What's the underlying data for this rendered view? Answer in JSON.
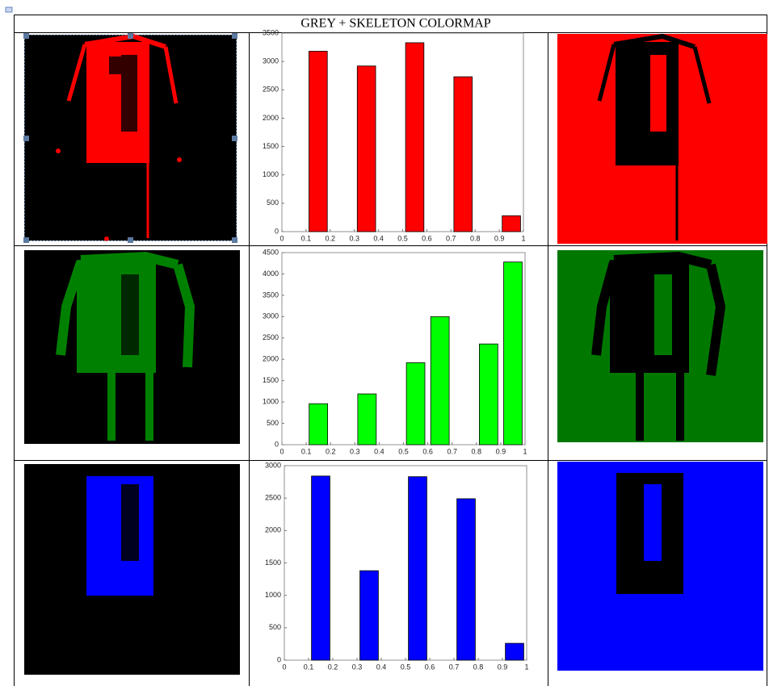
{
  "title": "GREY + SKELETON COLORMAP",
  "chart_data": [
    {
      "type": "histogram",
      "color": "#ff0000",
      "bins": [
        0,
        0.1,
        0.2,
        0.3,
        0.4,
        0.5,
        0.6,
        0.7,
        0.8,
        0.9,
        1
      ],
      "counts": [
        0,
        3180,
        0,
        2920,
        0,
        3330,
        0,
        2730,
        0,
        280
      ],
      "xlim": [
        0,
        1
      ],
      "xticks": [
        0,
        0.1,
        0.2,
        0.3,
        0.4,
        0.5,
        0.6,
        0.7,
        0.8,
        0.9,
        1
      ],
      "ylim": [
        0,
        3500
      ],
      "yticks": [
        0,
        500,
        1000,
        1500,
        2000,
        2500,
        3000,
        3500
      ]
    },
    {
      "type": "histogram",
      "color": "#00ff00",
      "bins": [
        0,
        0.1,
        0.2,
        0.3,
        0.4,
        0.5,
        0.6,
        0.7,
        0.8,
        0.9,
        1
      ],
      "counts": [
        0,
        960,
        0,
        1190,
        0,
        1920,
        3000,
        0,
        2360,
        4280
      ],
      "xlim": [
        0,
        1
      ],
      "xticks": [
        0,
        0.1,
        0.2,
        0.3,
        0.4,
        0.5,
        0.6,
        0.7,
        0.8,
        0.9,
        1
      ],
      "ylim": [
        0,
        4500
      ],
      "yticks": [
        0,
        500,
        1000,
        1500,
        2000,
        2500,
        3000,
        3500,
        4000,
        4500
      ]
    },
    {
      "type": "histogram",
      "color": "#0000ff",
      "bins": [
        0,
        0.1,
        0.2,
        0.3,
        0.4,
        0.5,
        0.6,
        0.7,
        0.8,
        0.9,
        1
      ],
      "counts": [
        0,
        2840,
        0,
        1380,
        0,
        2830,
        0,
        2490,
        0,
        260
      ],
      "xlim": [
        0,
        1
      ],
      "xticks": [
        0,
        0.1,
        0.2,
        0.3,
        0.4,
        0.5,
        0.6,
        0.7,
        0.8,
        0.9,
        1
      ],
      "ylim": [
        0,
        3000
      ],
      "yticks": [
        0,
        500,
        1000,
        1500,
        2000,
        2500,
        3000
      ]
    }
  ]
}
